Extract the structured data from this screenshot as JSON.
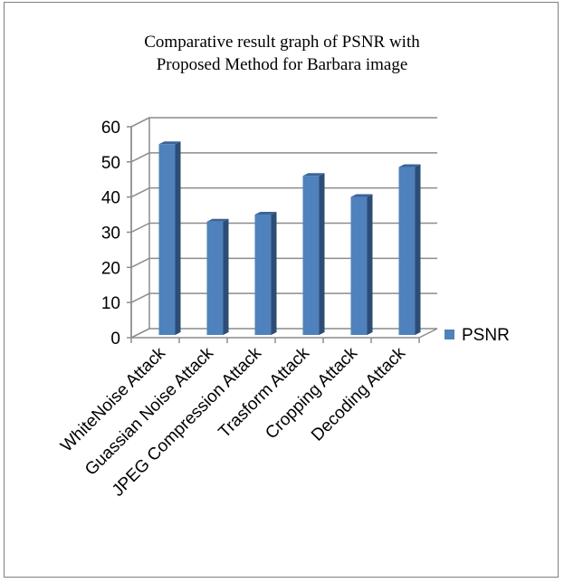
{
  "chart_data": {
    "type": "bar",
    "title_lines": [
      "Comparative result graph of PSNR with",
      "Proposed Method for Barbara image"
    ],
    "categories": [
      "WhiteNoise Attack",
      "Guassian Noise Attack",
      "JPEG Compression Attack",
      "Trasform Attack",
      "Cropping Attack",
      "Decoding Attack"
    ],
    "series": [
      {
        "name": "PSNR",
        "values": [
          54,
          32,
          34,
          45,
          39,
          47.5
        ],
        "color": "#4f81bd"
      }
    ],
    "ylim": [
      0,
      60
    ],
    "yticks": [
      "0",
      "10",
      "20",
      "30",
      "40",
      "50",
      "60"
    ],
    "grid": true,
    "legend_position": "right",
    "three_d": true
  }
}
